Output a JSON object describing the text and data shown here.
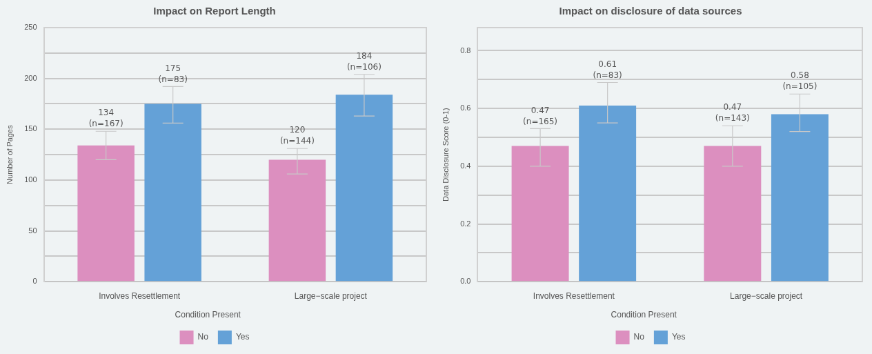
{
  "chart_data": [
    {
      "type": "bar",
      "title": "Impact on Report Length",
      "ylabel": "Number of Pages",
      "legend_title": "Condition Present",
      "legend": "bottom",
      "grid": "y",
      "categories": [
        "Involves Resettlement",
        "Large−scale project"
      ],
      "ylim": [
        0,
        250
      ],
      "yticks": [
        0,
        {
          "value": 25,
          "label": null
        },
        50,
        {
          "value": 75,
          "label": null
        },
        100,
        {
          "value": 125,
          "label": null
        },
        150,
        {
          "value": 175,
          "label": null
        },
        200,
        {
          "value": 225,
          "label": null
        },
        250
      ],
      "series": [
        {
          "name": "No",
          "color": "#dc8fbf",
          "values": [
            134,
            120
          ],
          "errors": [
            [
              120,
              148
            ],
            [
              106,
              131
            ]
          ],
          "value_labels": [
            "134\n(n=167)",
            "120\n(n=144)"
          ]
        },
        {
          "name": "Yes",
          "color": "#64a1d7",
          "values": [
            175,
            184
          ],
          "errors": [
            [
              156,
              192
            ],
            [
              163,
              204
            ]
          ],
          "value_labels": [
            "175\n(n=83)",
            "184\n(n=106)"
          ]
        }
      ]
    },
    {
      "type": "bar",
      "title": "Impact on disclosure of data sources",
      "ylabel": "Data Disclosure Score (0-1)",
      "legend_title": "Condition Present",
      "legend": "bottom",
      "grid": "y",
      "categories": [
        "Involves Resettlement",
        "Large−scale project"
      ],
      "ylim": [
        0,
        0.88
      ],
      "yticks": [
        {
          "value": 0,
          "label": "0.0"
        },
        {
          "value": 0.1,
          "label": null
        },
        0.2,
        {
          "value": 0.3,
          "label": null
        },
        0.4,
        {
          "value": 0.5,
          "label": null
        },
        0.6,
        {
          "value": 0.7,
          "label": null
        },
        0.8
      ],
      "series": [
        {
          "name": "No",
          "color": "#dc8fbf",
          "values": [
            0.47,
            0.47
          ],
          "errors": [
            [
              0.4,
              0.53
            ],
            [
              0.4,
              0.54
            ]
          ],
          "value_labels": [
            "0.47\n(n=165)",
            "0.47\n(n=143)"
          ]
        },
        {
          "name": "Yes",
          "color": "#64a1d7",
          "values": [
            0.61,
            0.58
          ],
          "errors": [
            [
              0.55,
              0.69
            ],
            [
              0.52,
              0.65
            ]
          ],
          "value_labels": [
            "0.61\n(n=83)",
            "0.58\n(n=105)"
          ]
        }
      ]
    }
  ]
}
